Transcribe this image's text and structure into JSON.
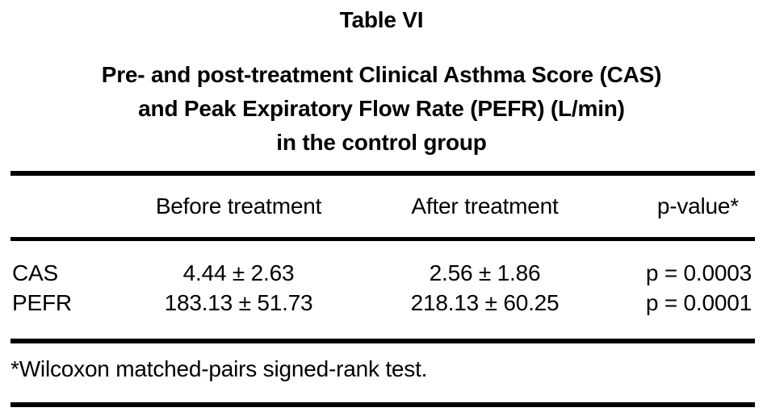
{
  "table": {
    "label": "Table VI",
    "title_lines": [
      "Pre- and post-treatment Clinical Asthma Score (CAS)",
      "and Peak Expiratory Flow Rate (PEFR) (L/min)",
      "in the control group"
    ],
    "columns": {
      "row_header": "",
      "before": "Before treatment",
      "after": "After treatment",
      "p": "p-value*"
    },
    "rows": [
      {
        "name": "CAS",
        "before": "4.44 ± 2.63",
        "after": "2.56 ± 1.86",
        "p": "p = 0.0003"
      },
      {
        "name": "PEFR",
        "before": "183.13 ± 51.73",
        "after": "218.13 ± 60.25",
        "p": "p = 0.0001"
      }
    ],
    "footnote": "*Wilcoxon matched-pairs signed-rank test."
  },
  "colors": {
    "background": "#ffffff",
    "text": "#000000",
    "rule": "#000000"
  }
}
